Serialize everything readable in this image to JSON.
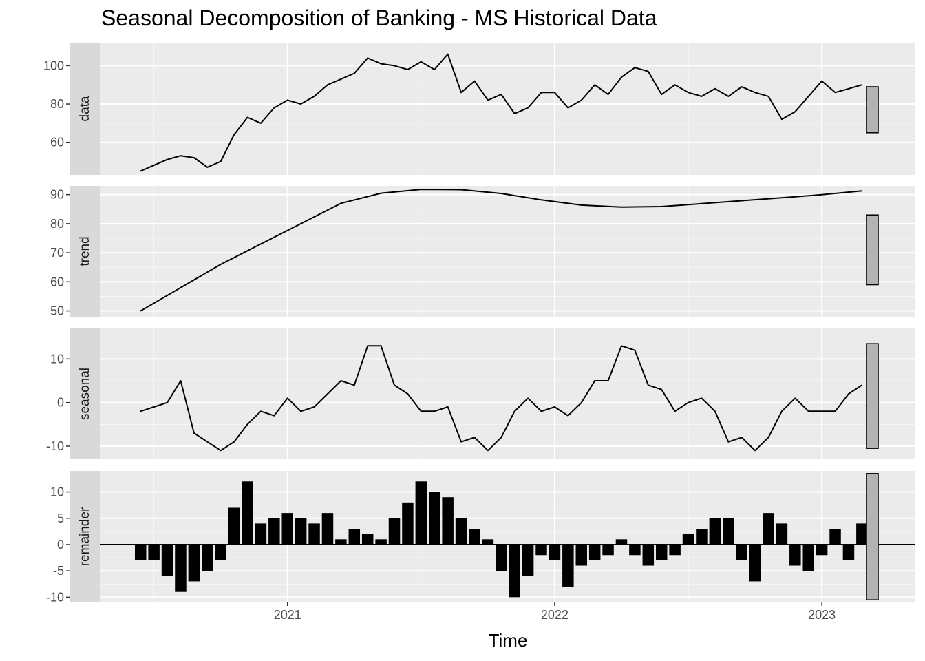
{
  "chart_data": {
    "type": "line",
    "title": "Seasonal Decomposition of Banking - MS Historical Data",
    "xlabel": "Time",
    "xlim": [
      2020.3,
      2023.35
    ],
    "x_ticks": [
      2021,
      2022,
      2023
    ],
    "x_tick_labels": [
      "2021",
      "2022",
      "2023"
    ],
    "grid": true,
    "facets": [
      {
        "name": "data",
        "ylim": [
          43,
          112
        ],
        "y_ticks": [
          60,
          80,
          100
        ],
        "y_tick_labels": [
          "60",
          "80",
          "100"
        ],
        "style": "line",
        "scale_bar": [
          65,
          89
        ],
        "x": [
          2020.45,
          2020.5,
          2020.55,
          2020.6,
          2020.65,
          2020.7,
          2020.75,
          2020.8,
          2020.85,
          2020.9,
          2020.95,
          2021.0,
          2021.05,
          2021.1,
          2021.15,
          2021.2,
          2021.25,
          2021.3,
          2021.35,
          2021.4,
          2021.45,
          2021.5,
          2021.55,
          2021.6,
          2021.65,
          2021.7,
          2021.75,
          2021.8,
          2021.85,
          2021.9,
          2021.95,
          2022.0,
          2022.05,
          2022.1,
          2022.15,
          2022.2,
          2022.25,
          2022.3,
          2022.35,
          2022.4,
          2022.45,
          2022.5,
          2022.55,
          2022.6,
          2022.65,
          2022.7,
          2022.75,
          2022.8,
          2022.85,
          2022.9,
          2022.95,
          2023.0,
          2023.05,
          2023.1,
          2023.15
        ],
        "values": [
          45,
          48,
          51,
          53,
          52,
          47,
          50,
          64,
          73,
          70,
          78,
          82,
          80,
          84,
          90,
          93,
          96,
          104,
          101,
          100,
          98,
          102,
          98,
          106,
          86,
          92,
          82,
          85,
          75,
          78,
          86,
          86,
          78,
          82,
          90,
          85,
          94,
          99,
          97,
          85,
          90,
          86,
          84,
          88,
          84,
          89,
          86,
          84,
          72,
          76,
          84,
          92,
          86,
          88,
          90
        ]
      },
      {
        "name": "trend",
        "ylim": [
          48,
          93
        ],
        "y_ticks": [
          50,
          60,
          70,
          80,
          90
        ],
        "y_tick_labels": [
          "50",
          "60",
          "70",
          "80",
          "90"
        ],
        "style": "line",
        "scale_bar": [
          59,
          83
        ],
        "x": [
          2020.45,
          2020.6,
          2020.75,
          2020.9,
          2021.05,
          2021.2,
          2021.35,
          2021.5,
          2021.65,
          2021.8,
          2021.95,
          2022.1,
          2022.25,
          2022.4,
          2022.55,
          2022.7,
          2022.85,
          2023.0,
          2023.15
        ],
        "values": [
          50,
          58,
          66,
          73,
          80,
          87,
          90.5,
          91.8,
          91.7,
          90.4,
          88.2,
          86.4,
          85.7,
          85.9,
          86.9,
          87.9,
          88.9,
          90.0,
          91.3
        ]
      },
      {
        "name": "seasonal",
        "ylim": [
          -13,
          17
        ],
        "y_ticks": [
          -10,
          0,
          10
        ],
        "y_tick_labels": [
          "-10",
          "0",
          "10"
        ],
        "style": "line",
        "scale_bar": [
          -10.5,
          13.5
        ],
        "x": [
          2020.45,
          2020.5,
          2020.55,
          2020.6,
          2020.65,
          2020.7,
          2020.75,
          2020.8,
          2020.85,
          2020.9,
          2020.95,
          2021.0,
          2021.05,
          2021.1,
          2021.15,
          2021.2,
          2021.25,
          2021.3,
          2021.35,
          2021.4,
          2021.45,
          2021.5,
          2021.55,
          2021.6,
          2021.65,
          2021.7,
          2021.75,
          2021.8,
          2021.85,
          2021.9,
          2021.95,
          2022.0,
          2022.05,
          2022.1,
          2022.15,
          2022.2,
          2022.25,
          2022.3,
          2022.35,
          2022.4,
          2022.45,
          2022.5,
          2022.55,
          2022.6,
          2022.65,
          2022.7,
          2022.75,
          2022.8,
          2022.85,
          2022.9,
          2022.95,
          2023.0,
          2023.05,
          2023.1,
          2023.15
        ],
        "values": [
          -2,
          -1,
          0,
          5,
          -7,
          -9,
          -11,
          -9,
          -5,
          -2,
          -3,
          1,
          -2,
          -1,
          2,
          5,
          4,
          13,
          13,
          4,
          2,
          -2,
          -2,
          -1,
          -9,
          -8,
          -11,
          -8,
          -2,
          1,
          -2,
          -1,
          -3,
          0,
          5,
          5,
          13,
          12,
          4,
          3,
          -2,
          0,
          1,
          -2,
          -9,
          -8,
          -11,
          -8,
          -2,
          1,
          -2,
          -2,
          -2,
          2,
          4
        ]
      },
      {
        "name": "remainder",
        "ylim": [
          -11,
          14
        ],
        "y_ticks": [
          -10,
          -5,
          0,
          5,
          10
        ],
        "y_tick_labels": [
          "-10",
          "-5",
          "0",
          "5",
          "10"
        ],
        "style": "bars",
        "scale_bar": [
          -10.5,
          13.5
        ],
        "x": [
          2020.45,
          2020.5,
          2020.55,
          2020.6,
          2020.65,
          2020.7,
          2020.75,
          2020.8,
          2020.85,
          2020.9,
          2020.95,
          2021.0,
          2021.05,
          2021.1,
          2021.15,
          2021.2,
          2021.25,
          2021.3,
          2021.35,
          2021.4,
          2021.45,
          2021.5,
          2021.55,
          2021.6,
          2021.65,
          2021.7,
          2021.75,
          2021.8,
          2021.85,
          2021.9,
          2021.95,
          2022.0,
          2022.05,
          2022.1,
          2022.15,
          2022.2,
          2022.25,
          2022.3,
          2022.35,
          2022.4,
          2022.45,
          2022.5,
          2022.55,
          2022.6,
          2022.65,
          2022.7,
          2022.75,
          2022.8,
          2022.85,
          2022.9,
          2022.95,
          2023.0,
          2023.05,
          2023.1,
          2023.15
        ],
        "values": [
          -3,
          -3,
          -6,
          -9,
          -7,
          -5,
          -3,
          7,
          12,
          4,
          5,
          6,
          5,
          4,
          6,
          1,
          3,
          2,
          1,
          5,
          8,
          12,
          10,
          9,
          5,
          3,
          1,
          -5,
          -10,
          -6,
          -2,
          -3,
          -8,
          -4,
          -3,
          -2,
          1,
          -2,
          -4,
          -3,
          -2,
          2,
          3,
          5,
          5,
          -3,
          -7,
          6,
          4,
          -4,
          -5,
          -2,
          3,
          -3,
          4
        ]
      }
    ]
  }
}
